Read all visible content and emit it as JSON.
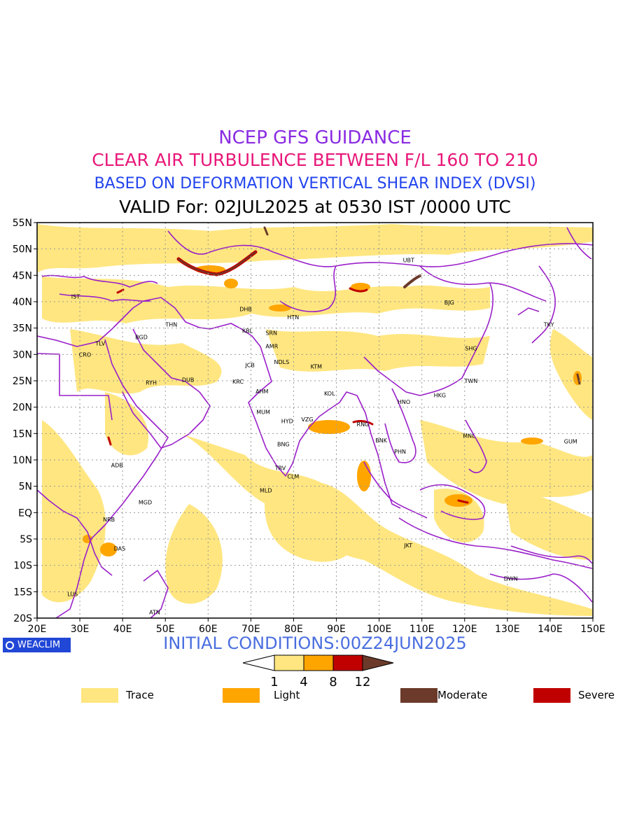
{
  "header": {
    "line1": "NCEP GFS GUIDANCE",
    "line2": "CLEAR AIR TURBULENCE BETWEEN F/L 160 TO 210",
    "line3": "BASED ON DEFORMATION VERTICAL SHEAR INDEX (DVSI)",
    "line4": "VALID For: 02JUL2025 at 0530 IST /0000 UTC"
  },
  "map": {
    "lat_labels": [
      "55N",
      "50N",
      "45N",
      "40N",
      "35N",
      "30N",
      "25N",
      "20N",
      "15N",
      "10N",
      "5N",
      "EQ",
      "5S",
      "10S",
      "15S",
      "20S"
    ],
    "lon_labels": [
      "20E",
      "30E",
      "40E",
      "50E",
      "60E",
      "70E",
      "80E",
      "90E",
      "100E",
      "110E",
      "120E",
      "130E",
      "140E",
      "150E"
    ],
    "lat_range": [
      -20,
      55
    ],
    "lon_range": [
      20,
      150
    ],
    "colors": {
      "border": "#9a1fc9",
      "trace": "#ffe680",
      "light": "#ffa500",
      "severe": "#c00000",
      "moderate": "#6b3a2a"
    },
    "stations": [
      {
        "code": "UBT",
        "lon": 106.9,
        "lat": 47.9
      },
      {
        "code": "BJG",
        "lon": 116.4,
        "lat": 39.9
      },
      {
        "code": "TKY",
        "lon": 139.7,
        "lat": 35.7
      },
      {
        "code": "SHG",
        "lon": 121.5,
        "lat": 31.2
      },
      {
        "code": "TWN",
        "lon": 121.5,
        "lat": 25.0
      },
      {
        "code": "HKG",
        "lon": 114.2,
        "lat": 22.3
      },
      {
        "code": "HNO",
        "lon": 105.8,
        "lat": 21.0
      },
      {
        "code": "MNL",
        "lon": 121.0,
        "lat": 14.6
      },
      {
        "code": "GUM",
        "lon": 144.8,
        "lat": 13.5
      },
      {
        "code": "BNK",
        "lon": 100.5,
        "lat": 13.7
      },
      {
        "code": "PHN",
        "lon": 104.9,
        "lat": 11.6
      },
      {
        "code": "RNG",
        "lon": 96.2,
        "lat": 16.8
      },
      {
        "code": "JKT",
        "lon": 106.8,
        "lat": -6.2
      },
      {
        "code": "DWN",
        "lon": 130.8,
        "lat": -12.5
      },
      {
        "code": "IST",
        "lon": 29.0,
        "lat": 41.0
      },
      {
        "code": "TLV",
        "lon": 34.8,
        "lat": 32.1
      },
      {
        "code": "CRO",
        "lon": 31.2,
        "lat": 30.0
      },
      {
        "code": "BGD",
        "lon": 44.4,
        "lat": 33.3
      },
      {
        "code": "THN",
        "lon": 51.4,
        "lat": 35.7
      },
      {
        "code": "RYH",
        "lon": 46.7,
        "lat": 24.7
      },
      {
        "code": "DUB",
        "lon": 55.3,
        "lat": 25.2
      },
      {
        "code": "DHB",
        "lon": 68.8,
        "lat": 38.6
      },
      {
        "code": "KBL",
        "lon": 69.2,
        "lat": 34.5
      },
      {
        "code": "SRN",
        "lon": 74.8,
        "lat": 34.1
      },
      {
        "code": "AMR",
        "lon": 74.9,
        "lat": 31.6
      },
      {
        "code": "JCB",
        "lon": 69.8,
        "lat": 28.0
      },
      {
        "code": "NDLS",
        "lon": 77.2,
        "lat": 28.6
      },
      {
        "code": "KRC",
        "lon": 67.0,
        "lat": 24.9
      },
      {
        "code": "AHM",
        "lon": 72.6,
        "lat": 23.0
      },
      {
        "code": "KTM",
        "lon": 85.3,
        "lat": 27.7
      },
      {
        "code": "KOL",
        "lon": 88.4,
        "lat": 22.6
      },
      {
        "code": "MUM",
        "lon": 72.9,
        "lat": 19.1
      },
      {
        "code": "HYD",
        "lon": 78.5,
        "lat": 17.4
      },
      {
        "code": "VZG",
        "lon": 83.2,
        "lat": 17.7
      },
      {
        "code": "BNG",
        "lon": 77.6,
        "lat": 13.0
      },
      {
        "code": "TRV",
        "lon": 76.9,
        "lat": 8.5
      },
      {
        "code": "CLM",
        "lon": 79.9,
        "lat": 6.9
      },
      {
        "code": "MLD",
        "lon": 73.5,
        "lat": 4.2
      },
      {
        "code": "HTN",
        "lon": 79.9,
        "lat": 37.1
      },
      {
        "code": "ADB",
        "lon": 38.7,
        "lat": 9.0
      },
      {
        "code": "MGD",
        "lon": 45.3,
        "lat": 2.0
      },
      {
        "code": "NRB",
        "lon": 36.8,
        "lat": -1.3
      },
      {
        "code": "DAS",
        "lon": 39.3,
        "lat": -6.8
      },
      {
        "code": "LUS",
        "lon": 28.3,
        "lat": -15.4
      },
      {
        "code": "ATN",
        "lon": 47.5,
        "lat": -18.9
      }
    ]
  },
  "footer": {
    "initial_conditions": "INITIAL CONDITIONS:00Z24JUN2025",
    "badge": "WEACLIM",
    "colorbar_ticks": [
      "1",
      "4",
      "8",
      "12"
    ],
    "legend": [
      {
        "label": "Trace",
        "color": "#ffe680"
      },
      {
        "label": "Light",
        "color": "#ffa500"
      },
      {
        "label": "Moderate",
        "color": "#6b3a2a"
      },
      {
        "label": "Severe",
        "color": "#c00000"
      }
    ]
  }
}
